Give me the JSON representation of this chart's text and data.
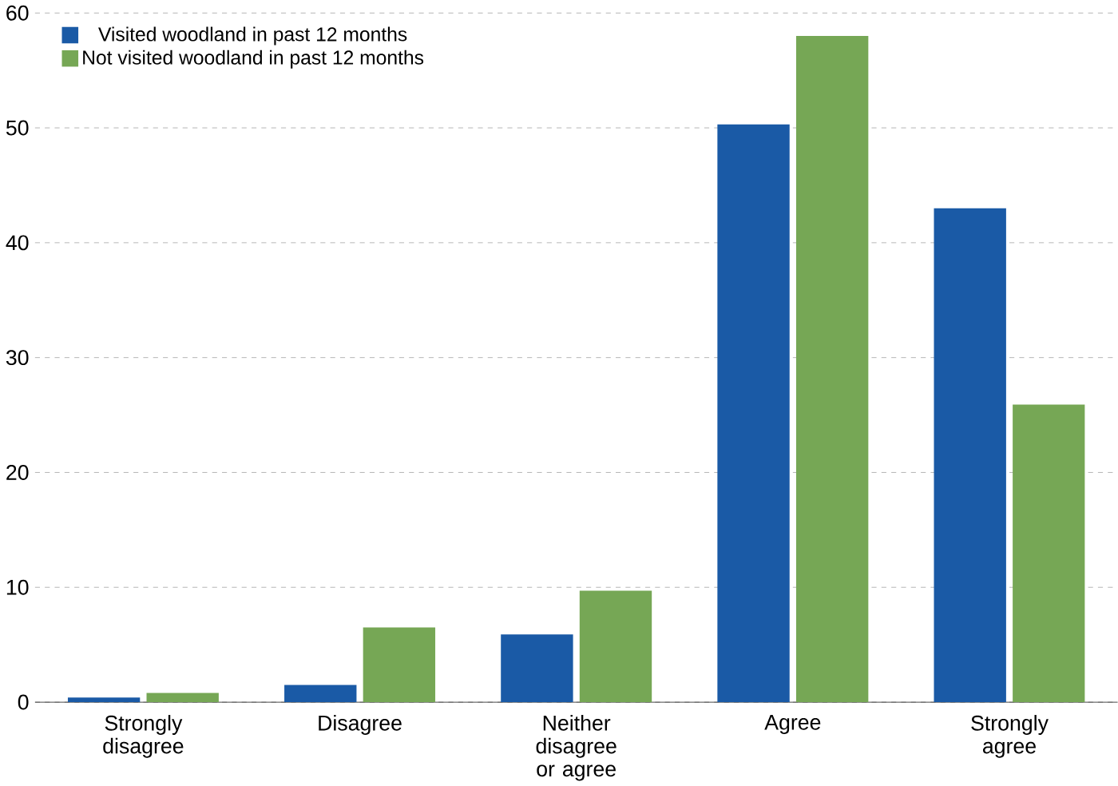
{
  "chart_data": {
    "type": "bar",
    "categories": [
      "Strongly disagree",
      "Disagree",
      "Neither disagree or agree",
      "Agree",
      "Strongly agree"
    ],
    "series": [
      {
        "name": "Visited woodland in past 12 months",
        "color": "#1a5aa6",
        "values": [
          0.4,
          1.5,
          5.9,
          50.3,
          43.0
        ]
      },
      {
        "name": "Not visited woodland in past 12 months",
        "color": "#76a755",
        "values": [
          0.8,
          6.5,
          9.7,
          58.0,
          25.9
        ]
      }
    ],
    "ylim": [
      0,
      60
    ],
    "yticks": [
      0,
      10,
      20,
      30,
      40,
      50,
      60
    ],
    "grid": "y",
    "legend": "top left"
  }
}
